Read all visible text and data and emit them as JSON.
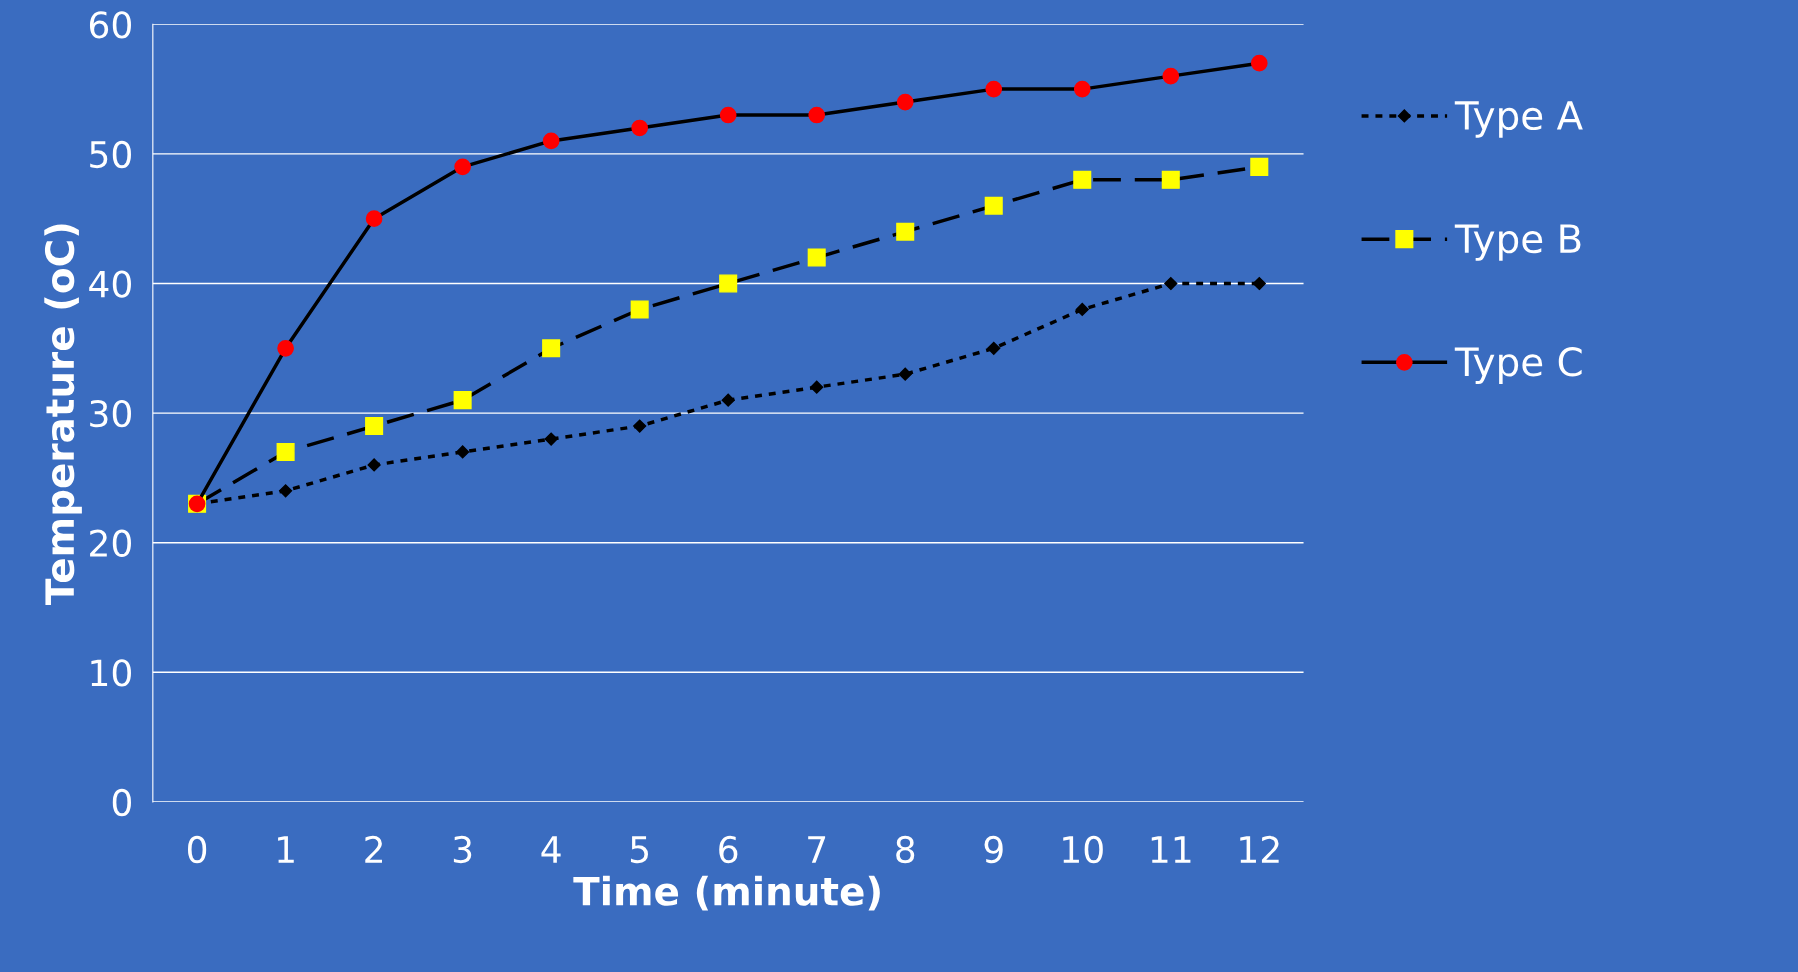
{
  "chart_data": {
    "type": "line",
    "xlabel": "Time (minute)",
    "ylabel": "Temperature (oC)",
    "categories": [
      "0",
      "1",
      "2",
      "3",
      "4",
      "5",
      "6",
      "7",
      "8",
      "9",
      "10",
      "11",
      "12"
    ],
    "series": [
      {
        "name": "Type A",
        "color": "#000000",
        "marker": "diamond",
        "line_style": "dotted",
        "values": [
          23,
          24,
          26,
          27,
          28,
          29,
          31,
          32,
          33,
          35,
          38,
          40,
          40
        ]
      },
      {
        "name": "Type B",
        "color": "#ffff00",
        "marker": "square",
        "line_style": "dashed",
        "values": [
          23,
          27,
          29,
          31,
          35,
          38,
          40,
          42,
          44,
          46,
          48,
          48,
          49
        ]
      },
      {
        "name": "Type C",
        "color": "#ff0000",
        "marker": "circle",
        "line_style": "solid",
        "values": [
          23,
          35,
          45,
          49,
          51,
          52,
          53,
          53,
          54,
          55,
          55,
          56,
          57
        ]
      }
    ],
    "ylim": [
      0,
      60
    ],
    "yticks": [
      0,
      10,
      20,
      30,
      40,
      50,
      60
    ],
    "grid": "y",
    "legend": "right"
  }
}
